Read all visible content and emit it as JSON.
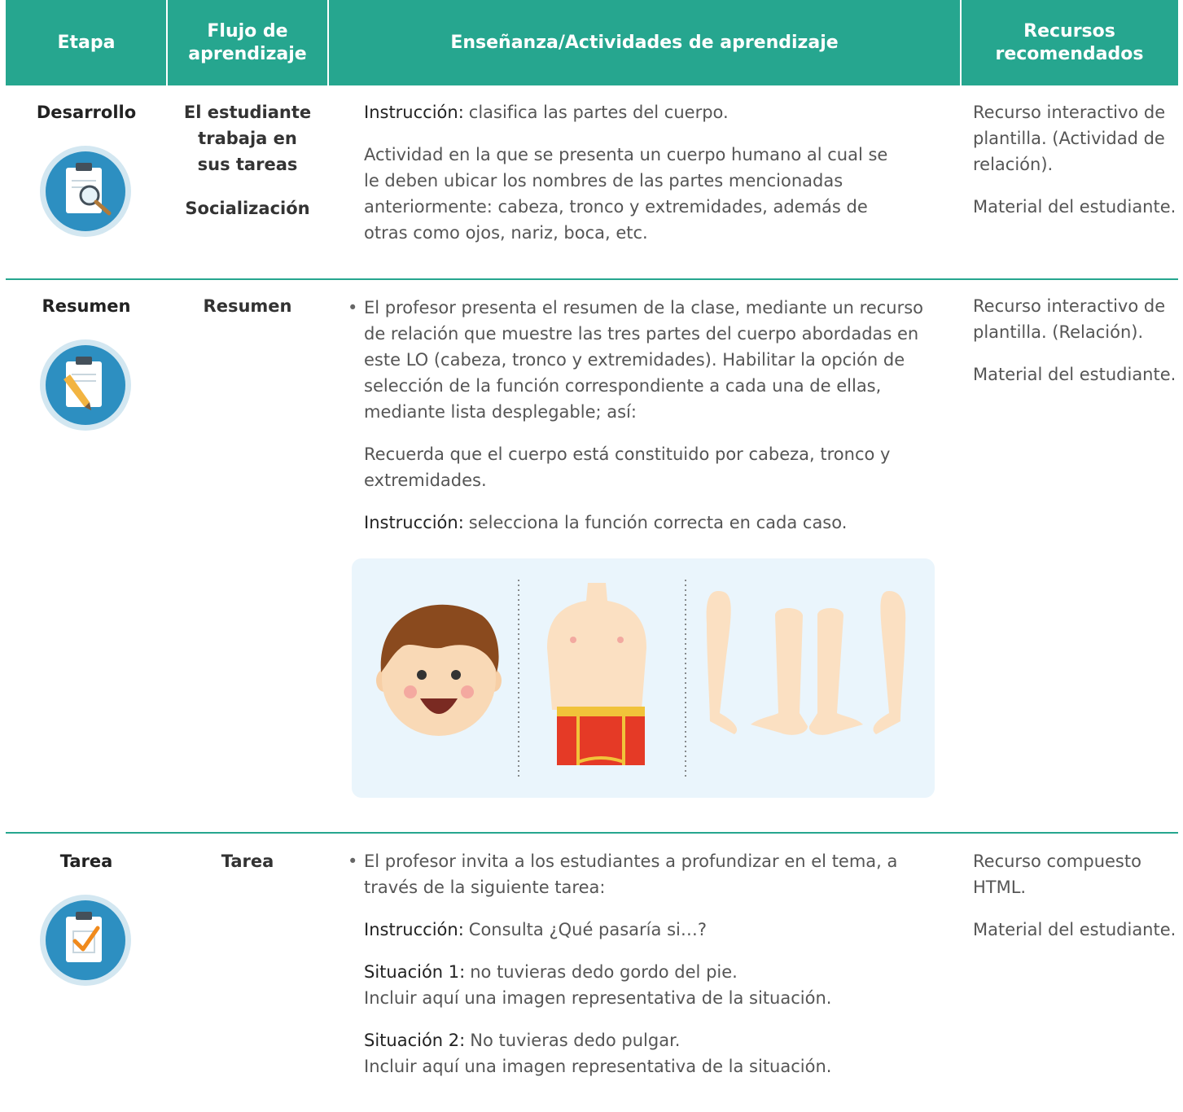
{
  "table": {
    "headers": [
      "Etapa",
      "Flujo de aprendizaje",
      "Enseñanza/Actividades de aprendizaje",
      "Recursos recomendados"
    ],
    "rows": [
      {
        "stage": "Desarrollo",
        "flow": [
          "El estudiante trabaja en sus tareas",
          "Socialización"
        ],
        "activities": {
          "paragraphs": [
            {
              "label": "Instrucción:",
              "text": "clasifica las partes del cuerpo."
            },
            {
              "text": "Actividad en la que se presenta un cuerpo humano al cual se le deben ubicar los nombres de las partes mencionadas anteriormente: cabeza, tronco y extremidades, además de otras como ojos, nariz, boca, etc."
            }
          ]
        },
        "resources": [
          "Recurso interactivo de plantilla. (Actividad de relación).",
          "Material del estudiante."
        ]
      },
      {
        "stage": "Resumen",
        "flow": [
          "Resumen"
        ],
        "activities": {
          "bullets": [
            "El profesor presenta el resumen de la clase, mediante un recurso de relación que muestre las tres partes del cuerpo abordadas en este LO (cabeza, tronco y extremidades). Habilitar la opción de selección de la función correspondiente a cada una de ellas, mediante lista desplegable; así:"
          ],
          "paragraphs": [
            {
              "text": "Recuerda que el cuerpo está constituido por cabeza, tronco y extremidades."
            },
            {
              "label": "Instrucción:",
              "text": "selecciona la función correcta en cada caso."
            }
          ]
        },
        "resources": [
          "Recurso interactivo de plantilla. (Relación).",
          "Material del estudiante."
        ]
      },
      {
        "stage": "Tarea",
        "flow": [
          "Tarea"
        ],
        "activities": {
          "bullets": [
            "El profesor invita a los estudiantes a profundizar en el tema, a través de la siguiente tarea:"
          ],
          "paragraphs": [
            {
              "label": "Instrucción:",
              "text": "Consulta ¿Qué pasaría si…?"
            },
            {
              "label": "Situación 1:",
              "text": "no tuvieras dedo gordo del pie.",
              "note": "Incluir aquí una imagen representativa de la situación."
            },
            {
              "label": "Situación 2:",
              "text": "No tuvieras dedo pulgar.",
              "note": "Incluir aquí una imagen representativa de la situación."
            }
          ]
        },
        "resources": [
          "Recurso compuesto HTML.",
          "Material del estudiante."
        ]
      }
    ]
  }
}
